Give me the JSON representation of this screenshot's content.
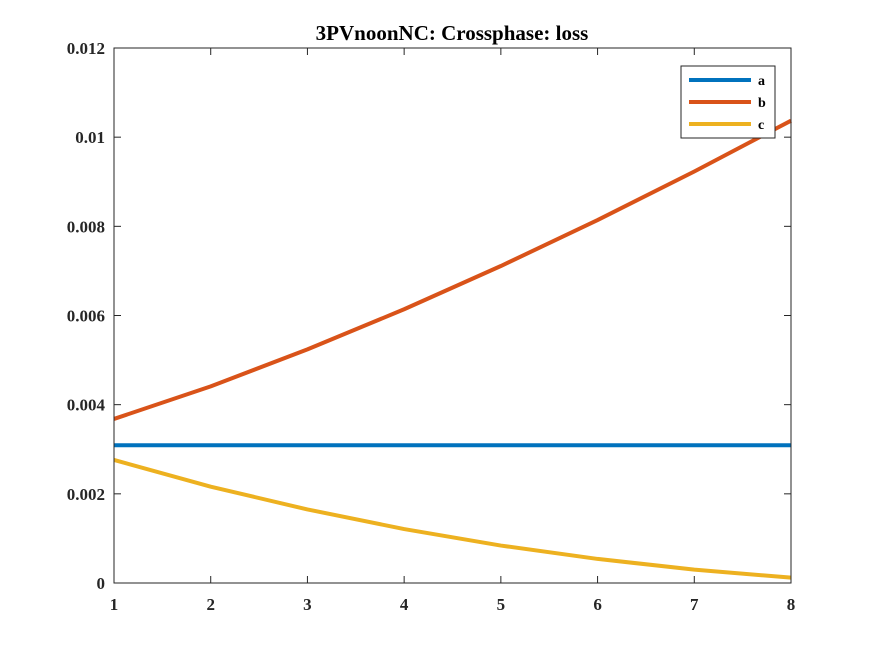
{
  "chart_data": {
    "type": "line",
    "title": "3PVnoonNC: Crossphase: loss",
    "xlabel": "",
    "ylabel": "",
    "x": [
      1,
      2,
      3,
      4,
      5,
      6,
      7,
      8
    ],
    "xlim": [
      1,
      8
    ],
    "ylim": [
      0,
      0.012
    ],
    "xticks": [
      "1",
      "2",
      "3",
      "4",
      "5",
      "6",
      "7",
      "8"
    ],
    "yticks": [
      "0",
      "0.002",
      "0.004",
      "0.006",
      "0.008",
      "0.01",
      "0.012"
    ],
    "grid": false,
    "legend_position": "top-right",
    "series": [
      {
        "name": "a",
        "color": "#0072BD",
        "values": [
          0.00309,
          0.00309,
          0.00309,
          0.00309,
          0.00309,
          0.00309,
          0.00309,
          0.00309
        ]
      },
      {
        "name": "b",
        "color": "#D95319",
        "values": [
          0.00368,
          0.00441,
          0.00524,
          0.00614,
          0.00711,
          0.00814,
          0.00923,
          0.01037
        ]
      },
      {
        "name": "c",
        "color": "#EDB120",
        "values": [
          0.00276,
          0.00216,
          0.00165,
          0.00121,
          0.00084,
          0.00054,
          0.0003,
          0.00012
        ]
      }
    ]
  }
}
